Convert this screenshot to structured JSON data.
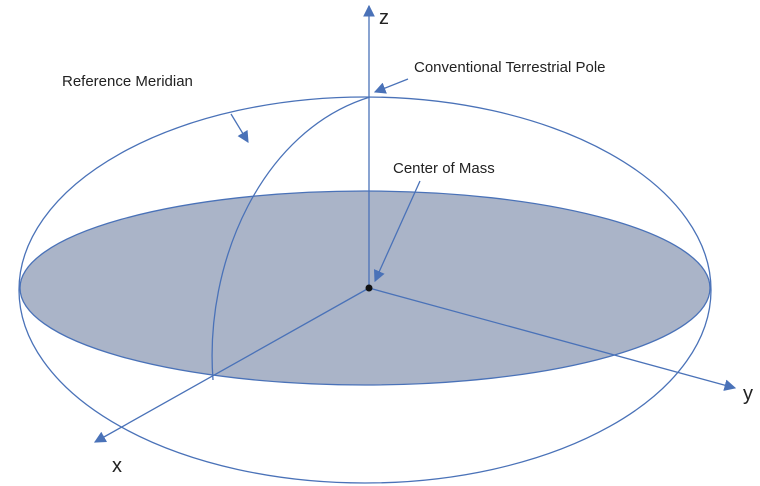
{
  "labels": {
    "z_axis": "z",
    "y_axis": "y",
    "x_axis": "x",
    "reference_meridian": "Reference Meridian",
    "pole": "Conventional Terrestrial Pole",
    "center_of_mass": "Center of Mass"
  }
}
